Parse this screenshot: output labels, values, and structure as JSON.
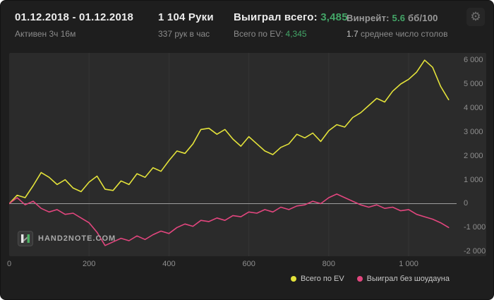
{
  "header": {
    "date_range": "01.12.2018 - 01.12.2018",
    "active_time": "Активен 3ч 16м",
    "hands": "1 104 Руки",
    "hands_per_hour": "337 рук в час",
    "won_total_label": "Выиграл всего:",
    "won_total_value": "3,485",
    "ev_total_label": "Всего по EV:",
    "ev_total_value": "4,345",
    "winrate_label": "Винрейт:",
    "winrate_value": "5.6",
    "winrate_units": "бб/100",
    "avg_tables_value": "1.7",
    "avg_tables_label": "среднее число столов",
    "gear_icon": "⚙"
  },
  "logo": {
    "text": "HAND2NOTE.COM"
  },
  "colors": {
    "green": "#43a567",
    "yellow": "#e3e23a",
    "pink": "#e2467e",
    "plot_bg": "#2b2b2b",
    "zero_line": "#9e9e9e",
    "grid": "rgba(255,255,255,0.05)"
  },
  "chart_data": {
    "type": "line",
    "x_start": 0,
    "x_step": 20,
    "xlim": [
      0,
      1120
    ],
    "ylim": [
      -2200,
      6300
    ],
    "xlabel": "",
    "ylabel": "",
    "grid": "vertical-faint",
    "zero_line": true,
    "legend_position": "bottom-right",
    "y_ticks": [
      {
        "v": 6000,
        "label": "6 000"
      },
      {
        "v": 5000,
        "label": "5 000"
      },
      {
        "v": 4000,
        "label": "4 000"
      },
      {
        "v": 3000,
        "label": "3 000"
      },
      {
        "v": 2000,
        "label": "2 000"
      },
      {
        "v": 1000,
        "label": "1 000"
      },
      {
        "v": 0,
        "label": "0"
      },
      {
        "v": -1000,
        "label": "-1 000"
      },
      {
        "v": -2000,
        "label": "-2 000"
      }
    ],
    "x_ticks": [
      {
        "v": 0,
        "label": "0"
      },
      {
        "v": 200,
        "label": "200"
      },
      {
        "v": 400,
        "label": "400"
      },
      {
        "v": 600,
        "label": "600"
      },
      {
        "v": 800,
        "label": "800"
      },
      {
        "v": 1000,
        "label": "1 000"
      }
    ],
    "series": [
      {
        "name": "Всего по EV",
        "color": "#e3e23a",
        "values": [
          0,
          350,
          250,
          750,
          1300,
          1100,
          800,
          1000,
          650,
          500,
          900,
          1150,
          600,
          550,
          950,
          800,
          1250,
          1100,
          1500,
          1350,
          1800,
          2200,
          2100,
          2500,
          3100,
          3150,
          2900,
          3100,
          2700,
          2400,
          2800,
          2500,
          2200,
          2050,
          2350,
          2500,
          2900,
          2750,
          2950,
          2600,
          3050,
          3300,
          3200,
          3600,
          3800,
          4100,
          4400,
          4250,
          4700,
          5000,
          5200,
          5500,
          6000,
          5700,
          4900,
          4345
        ]
      },
      {
        "name": "Выиграл без шоудауна",
        "color": "#e2467e",
        "values": [
          0,
          250,
          -50,
          100,
          -200,
          -350,
          -250,
          -450,
          -400,
          -600,
          -800,
          -1200,
          -1750,
          -1600,
          -1450,
          -1550,
          -1350,
          -1500,
          -1300,
          -1150,
          -1250,
          -1000,
          -850,
          -950,
          -700,
          -750,
          -600,
          -700,
          -500,
          -550,
          -350,
          -400,
          -250,
          -350,
          -150,
          -250,
          -100,
          -50,
          100,
          0,
          250,
          400,
          250,
          100,
          -50,
          -150,
          -50,
          -200,
          -150,
          -300,
          -250,
          -450,
          -550,
          -650,
          -800,
          -1000
        ]
      }
    ]
  }
}
